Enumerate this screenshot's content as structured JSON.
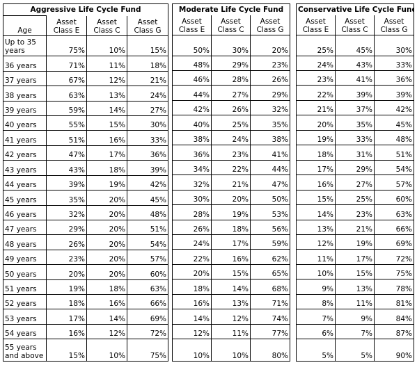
{
  "funds": [
    {
      "title": "Aggressive Life Cycle Fund",
      "columns": [
        "Asset Class E",
        "Asset Class C",
        "Asset Class G"
      ],
      "values": [
        [
          "75%",
          "10%",
          "15%"
        ],
        [
          "71%",
          "11%",
          "18%"
        ],
        [
          "67%",
          "12%",
          "21%"
        ],
        [
          "63%",
          "13%",
          "24%"
        ],
        [
          "59%",
          "14%",
          "27%"
        ],
        [
          "55%",
          "15%",
          "30%"
        ],
        [
          "51%",
          "16%",
          "33%"
        ],
        [
          "47%",
          "17%",
          "36%"
        ],
        [
          "43%",
          "18%",
          "39%"
        ],
        [
          "39%",
          "19%",
          "42%"
        ],
        [
          "35%",
          "20%",
          "45%"
        ],
        [
          "32%",
          "20%",
          "48%"
        ],
        [
          "29%",
          "20%",
          "51%"
        ],
        [
          "26%",
          "20%",
          "54%"
        ],
        [
          "23%",
          "20%",
          "57%"
        ],
        [
          "20%",
          "20%",
          "60%"
        ],
        [
          "19%",
          "18%",
          "63%"
        ],
        [
          "18%",
          "16%",
          "66%"
        ],
        [
          "17%",
          "14%",
          "69%"
        ],
        [
          "16%",
          "12%",
          "72%"
        ],
        [
          "15%",
          "10%",
          "75%"
        ]
      ]
    },
    {
      "title": "Moderate Life Cycle Fund",
      "columns": [
        "Asset Class E",
        "Asset Class C",
        "Asset Class G"
      ],
      "values": [
        [
          "50%",
          "30%",
          "20%"
        ],
        [
          "48%",
          "29%",
          "23%"
        ],
        [
          "46%",
          "28%",
          "26%"
        ],
        [
          "44%",
          "27%",
          "29%"
        ],
        [
          "42%",
          "26%",
          "32%"
        ],
        [
          "40%",
          "25%",
          "35%"
        ],
        [
          "38%",
          "24%",
          "38%"
        ],
        [
          "36%",
          "23%",
          "41%"
        ],
        [
          "34%",
          "22%",
          "44%"
        ],
        [
          "32%",
          "21%",
          "47%"
        ],
        [
          "30%",
          "20%",
          "50%"
        ],
        [
          "28%",
          "19%",
          "53%"
        ],
        [
          "26%",
          "18%",
          "56%"
        ],
        [
          "24%",
          "17%",
          "59%"
        ],
        [
          "22%",
          "16%",
          "62%"
        ],
        [
          "20%",
          "15%",
          "65%"
        ],
        [
          "18%",
          "14%",
          "68%"
        ],
        [
          "16%",
          "13%",
          "71%"
        ],
        [
          "14%",
          "12%",
          "74%"
        ],
        [
          "12%",
          "11%",
          "77%"
        ],
        [
          "10%",
          "10%",
          "80%"
        ]
      ]
    },
    {
      "title": "Conservative Life Cycle Fund",
      "columns": [
        "Asset Class E",
        "Asset Class C",
        "Asset Class G"
      ],
      "values": [
        [
          "25%",
          "45%",
          "30%"
        ],
        [
          "24%",
          "43%",
          "33%"
        ],
        [
          "23%",
          "41%",
          "36%"
        ],
        [
          "22%",
          "39%",
          "39%"
        ],
        [
          "21%",
          "37%",
          "42%"
        ],
        [
          "20%",
          "35%",
          "45%"
        ],
        [
          "19%",
          "33%",
          "48%"
        ],
        [
          "18%",
          "31%",
          "51%"
        ],
        [
          "17%",
          "29%",
          "54%"
        ],
        [
          "16%",
          "27%",
          "57%"
        ],
        [
          "15%",
          "25%",
          "60%"
        ],
        [
          "14%",
          "23%",
          "63%"
        ],
        [
          "13%",
          "21%",
          "66%"
        ],
        [
          "12%",
          "19%",
          "69%"
        ],
        [
          "11%",
          "17%",
          "72%"
        ],
        [
          "10%",
          "15%",
          "75%"
        ],
        [
          "9%",
          "13%",
          "78%"
        ],
        [
          "8%",
          "11%",
          "81%"
        ],
        [
          "7%",
          "9%",
          "84%"
        ],
        [
          "6%",
          "7%",
          "87%"
        ],
        [
          "5%",
          "5%",
          "90%"
        ]
      ]
    }
  ],
  "age_header": "Age",
  "ages": [
    "Up to 35 years",
    "36 years",
    "37 years",
    "38 years",
    "39 years",
    "40 years",
    "41 years",
    "42 years",
    "43 years",
    "44 years",
    "45 years",
    "46 years",
    "47 years",
    "48 years",
    "49 years",
    "50 years",
    "51 years",
    "52 years",
    "53 years",
    "54 years",
    "55 years and above"
  ]
}
